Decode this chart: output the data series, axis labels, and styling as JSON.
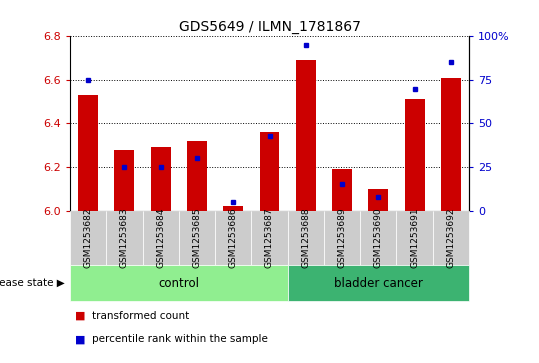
{
  "title": "GDS5649 / ILMN_1781867",
  "samples": [
    "GSM1253682",
    "GSM1253683",
    "GSM1253684",
    "GSM1253685",
    "GSM1253686",
    "GSM1253687",
    "GSM1253688",
    "GSM1253689",
    "GSM1253690",
    "GSM1253691",
    "GSM1253692"
  ],
  "transformed_count": [
    6.53,
    6.28,
    6.29,
    6.32,
    6.02,
    6.36,
    6.69,
    6.19,
    6.1,
    6.51,
    6.61
  ],
  "percentile_rank": [
    75,
    25,
    25,
    30,
    5,
    43,
    95,
    15,
    8,
    70,
    85
  ],
  "ylim_left": [
    6.0,
    6.8
  ],
  "ylim_right": [
    0,
    100
  ],
  "yticks_left": [
    6.0,
    6.2,
    6.4,
    6.6,
    6.8
  ],
  "yticks_right": [
    0,
    25,
    50,
    75,
    100
  ],
  "bar_color": "#cc0000",
  "percentile_color": "#0000cc",
  "control_samples": 6,
  "cancer_samples": 5,
  "control_label": "control",
  "cancer_label": "bladder cancer",
  "disease_state_label": "disease state",
  "legend_red": "transformed count",
  "legend_blue": "percentile rank within the sample",
  "control_bg": "#90EE90",
  "cancer_bg": "#3CB371",
  "tick_bg": "#cccccc",
  "bar_width": 0.55,
  "figsize": [
    5.39,
    3.63
  ],
  "dpi": 100
}
